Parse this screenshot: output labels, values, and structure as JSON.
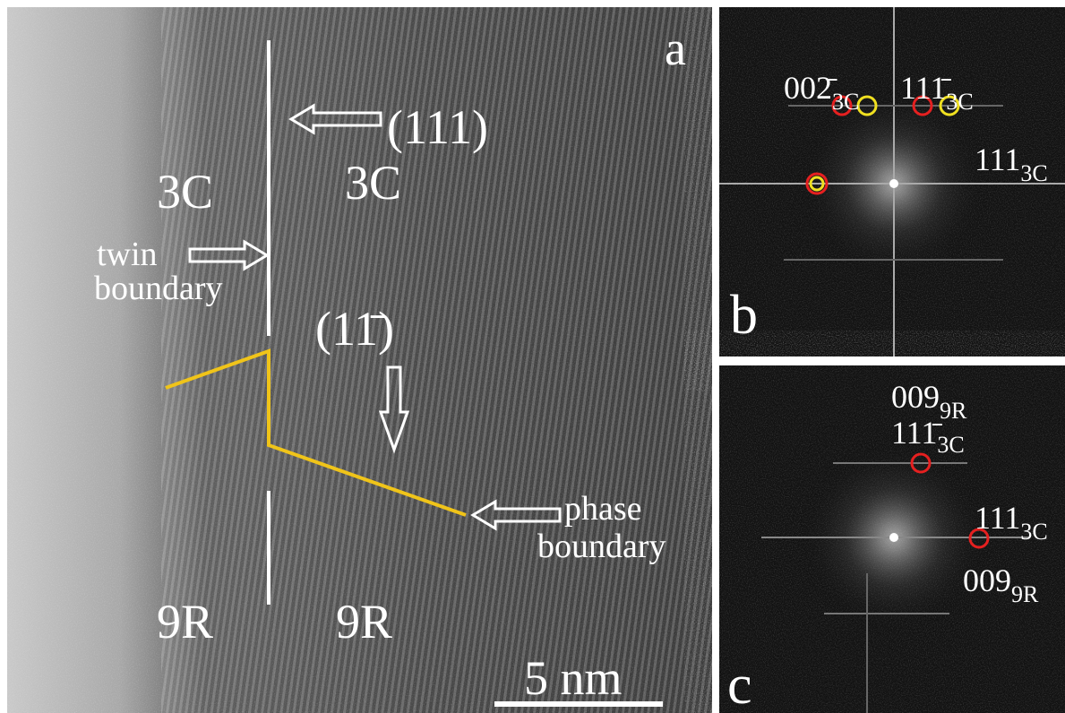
{
  "panel_a": {
    "label": "a",
    "top_plane": "(111)",
    "left_phase": "3C",
    "right_phase": "3C",
    "twin_boundary": [
      "twin",
      "boundary"
    ],
    "lower_plane": "(11̄)",
    "phase_boundary": [
      "phase",
      "boundary"
    ],
    "bottom_left_phase": "9R",
    "bottom_right_phase": "9R",
    "scale_bar": "5 nm"
  },
  "panel_b": {
    "label": "b",
    "spots": [
      {
        "main": "002̄",
        "sub": "3C"
      },
      {
        "main": "111̄",
        "sub": "3C"
      },
      {
        "main": "111",
        "sub": "3C"
      }
    ]
  },
  "panel_c": {
    "label": "c",
    "spots": [
      {
        "main": "009",
        "sub": "9R"
      },
      {
        "main": "111̄",
        "sub": "3C"
      },
      {
        "main": "111",
        "sub": "3C"
      },
      {
        "main": "009",
        "sub": "9R"
      }
    ]
  }
}
